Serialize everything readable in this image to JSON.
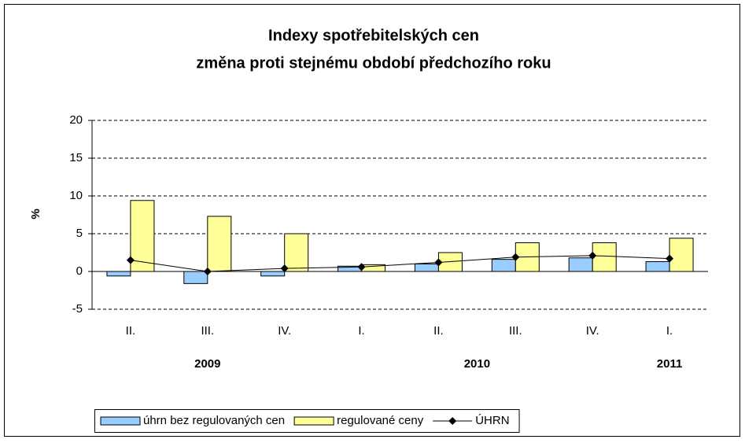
{
  "chart_data": {
    "type": "bar",
    "title": "Indexy spotřebitelských cen",
    "subtitle": "změna proti stejnému období předchozího roku",
    "y_label": "%",
    "categories": [
      "II.",
      "III.",
      "IV.",
      "I.",
      "II.",
      "III.",
      "IV.",
      "I."
    ],
    "groups": [
      {
        "label": "2009",
        "count": 3
      },
      {
        "label": "2010",
        "count": 4
      },
      {
        "label": "2011",
        "count": 1
      }
    ],
    "series": [
      {
        "name": "úhrn bez regulovaných cen",
        "type": "bar",
        "color": "#99ccff",
        "values": [
          -0.6,
          -1.6,
          -0.6,
          0.7,
          1.0,
          1.6,
          1.8,
          1.3
        ]
      },
      {
        "name": "regulované ceny",
        "type": "bar",
        "color": "#ffff99",
        "values": [
          9.4,
          7.3,
          5.0,
          0.9,
          2.5,
          3.8,
          3.8,
          4.4
        ]
      },
      {
        "name": "ÚHRN",
        "type": "line",
        "color": "#000000",
        "values": [
          1.5,
          0.0,
          0.4,
          0.6,
          1.2,
          1.9,
          2.1,
          1.7
        ]
      }
    ],
    "ylim": [
      -5,
      20
    ],
    "yticks": [
      -5,
      0,
      5,
      10,
      15,
      20
    ],
    "grid": true,
    "legend": "bottom"
  }
}
